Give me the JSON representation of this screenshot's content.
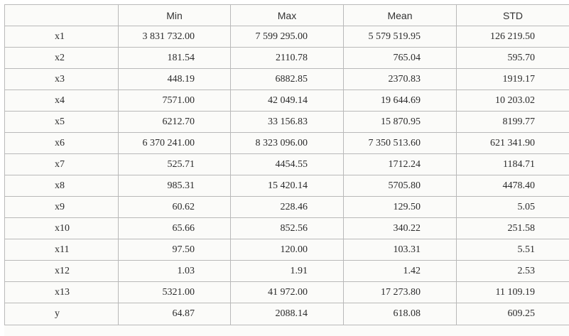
{
  "table": {
    "headers": [
      "",
      "Min",
      "Max",
      "Mean",
      "STD"
    ],
    "rows": [
      {
        "label": "x1",
        "values": [
          "3 831 732.00",
          "7 599 295.00",
          "5 579 519.95",
          "126 219.50"
        ]
      },
      {
        "label": "x2",
        "values": [
          "181.54",
          "2110.78",
          "765.04",
          "595.70"
        ]
      },
      {
        "label": "x3",
        "values": [
          "448.19",
          "6882.85",
          "2370.83",
          "1919.17"
        ]
      },
      {
        "label": "x4",
        "values": [
          "7571.00",
          "42 049.14",
          "19 644.69",
          "10 203.02"
        ]
      },
      {
        "label": "x5",
        "values": [
          "6212.70",
          "33 156.83",
          "15 870.95",
          "8199.77"
        ]
      },
      {
        "label": "x6",
        "values": [
          "6 370 241.00",
          "8 323 096.00",
          "7 350 513.60",
          "621 341.90"
        ]
      },
      {
        "label": "x7",
        "values": [
          "525.71",
          "4454.55",
          "1712.24",
          "1184.71"
        ]
      },
      {
        "label": "x8",
        "values": [
          "985.31",
          "15 420.14",
          "5705.80",
          "4478.40"
        ]
      },
      {
        "label": "x9",
        "values": [
          "60.62",
          "228.46",
          "129.50",
          "5.05"
        ]
      },
      {
        "label": "x10",
        "values": [
          "65.66",
          "852.56",
          "340.22",
          "251.58"
        ]
      },
      {
        "label": "x11",
        "values": [
          "97.50",
          "120.00",
          "103.31",
          "5.51"
        ]
      },
      {
        "label": "x12",
        "values": [
          "1.03",
          "1.91",
          "1.42",
          "2.53"
        ]
      },
      {
        "label": "x13",
        "values": [
          "5321.00",
          "41 972.00",
          "17 273.80",
          "11 109.19"
        ]
      },
      {
        "label": "y",
        "values": [
          "64.87",
          "2088.14",
          "618.08",
          "609.25"
        ]
      }
    ]
  }
}
